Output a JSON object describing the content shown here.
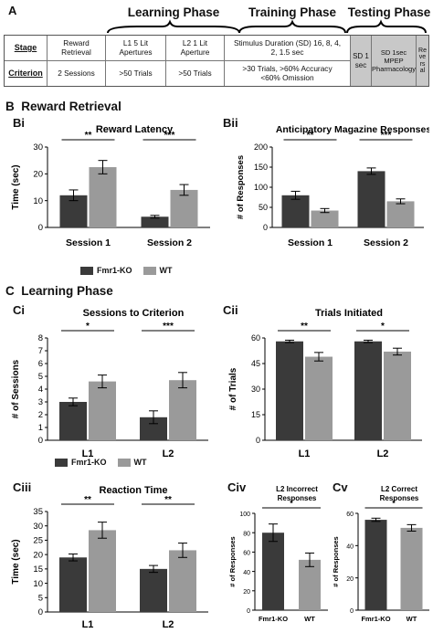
{
  "panel_a": {
    "label": "A",
    "phases": [
      "Learning Phase",
      "Training Phase",
      "Testing Phase"
    ],
    "row_headers": [
      "Stage",
      "Criterion"
    ],
    "stages": [
      "Reward Retrieval",
      "L1 5 Lit Apertures",
      "L2 1 Lit Aperture",
      "Stimulus Duration (SD) 16, 8, 4, 2, 1.5 sec",
      "SD 1 sec",
      "SD 1sec MPEP Pharmacology",
      "Reversal"
    ],
    "criteria": [
      "2 Sessions",
      ">50 Trials",
      ">50 Trials",
      ">30 Trials, >60% Accuracy <60% Omission"
    ]
  },
  "section_b": {
    "letter": "B",
    "title": "Reward Retrieval"
  },
  "section_c": {
    "letter": "C",
    "title": "Learning Phase"
  },
  "legend": {
    "entries": [
      "Fmr1-KO",
      "WT"
    ],
    "colors": [
      "#3a3a3a",
      "#9a9a9a"
    ]
  },
  "chart_data": [
    {
      "panel": "Bi",
      "title": "Reward Latency",
      "type": "bar",
      "ylabel": "Time (sec)",
      "ylim": [
        0,
        30
      ],
      "yticks": [
        0,
        10,
        20,
        30
      ],
      "categories": [
        "Session 1",
        "Session 2"
      ],
      "series": [
        {
          "name": "Fmr1-KO",
          "values": [
            12,
            4
          ],
          "errors": [
            2,
            0.5
          ]
        },
        {
          "name": "WT",
          "values": [
            22.5,
            14
          ],
          "errors": [
            2.5,
            2
          ]
        }
      ],
      "significance": [
        "**",
        "***"
      ]
    },
    {
      "panel": "Bii",
      "title": "Anticipatory Magazine Responses",
      "type": "bar",
      "ylabel": "# of Responses",
      "ylim": [
        0,
        200
      ],
      "yticks": [
        0,
        50,
        100,
        150,
        200
      ],
      "categories": [
        "Session 1",
        "Session 2"
      ],
      "series": [
        {
          "name": "Fmr1-KO",
          "values": [
            80,
            140
          ],
          "errors": [
            10,
            8
          ]
        },
        {
          "name": "WT",
          "values": [
            42,
            65
          ],
          "errors": [
            5,
            6
          ]
        }
      ],
      "significance": [
        "**",
        "***"
      ]
    },
    {
      "panel": "Ci",
      "title": "Sessions to Criterion",
      "type": "bar",
      "ylabel": "# of Sessions",
      "ylim": [
        0,
        8
      ],
      "yticks": [
        0,
        1,
        2,
        3,
        4,
        5,
        6,
        7,
        8
      ],
      "categories": [
        "L1",
        "L2"
      ],
      "series": [
        {
          "name": "Fmr1-KO",
          "values": [
            3,
            1.8
          ],
          "errors": [
            0.3,
            0.5
          ]
        },
        {
          "name": "WT",
          "values": [
            4.6,
            4.7
          ],
          "errors": [
            0.5,
            0.6
          ]
        }
      ],
      "significance": [
        "*",
        "***"
      ]
    },
    {
      "panel": "Cii",
      "title": "Trials Initiated",
      "type": "bar",
      "ylabel": "# of Trials",
      "ylim": [
        0,
        60
      ],
      "yticks": [
        0,
        15,
        30,
        45,
        60
      ],
      "categories": [
        "L1",
        "L2"
      ],
      "series": [
        {
          "name": "Fmr1-KO",
          "values": [
            58,
            58
          ],
          "errors": [
            0.7,
            0.7
          ]
        },
        {
          "name": "WT",
          "values": [
            49,
            52
          ],
          "errors": [
            2.5,
            2
          ]
        }
      ],
      "significance": [
        "**",
        "*"
      ]
    },
    {
      "panel": "Ciii",
      "title": "Reaction Time",
      "type": "bar",
      "ylabel": "Time (sec)",
      "ylim": [
        0,
        35
      ],
      "yticks": [
        0,
        5,
        10,
        15,
        20,
        25,
        30,
        35
      ],
      "categories": [
        "L1",
        "L2"
      ],
      "series": [
        {
          "name": "Fmr1-KO",
          "values": [
            19,
            15
          ],
          "errors": [
            1.2,
            1.2
          ]
        },
        {
          "name": "WT",
          "values": [
            28.5,
            21.5
          ],
          "errors": [
            2.8,
            2.5
          ]
        }
      ],
      "significance": [
        "**",
        "**"
      ]
    },
    {
      "panel": "Civ",
      "title": "L2 Incorrect Responses",
      "type": "bar",
      "ylabel": "# of Responses",
      "ylim": [
        0,
        100
      ],
      "yticks": [
        0,
        20,
        40,
        60,
        80,
        100
      ],
      "categories": [
        "Fmr1-KO",
        "WT"
      ],
      "series": [
        {
          "name": "",
          "values": [
            80,
            52
          ],
          "errors": [
            9,
            7
          ]
        }
      ],
      "significance": [
        "*"
      ]
    },
    {
      "panel": "Cv",
      "title": "L2 Correct Responses",
      "type": "bar",
      "ylabel": "# of Responses",
      "ylim": [
        0,
        60
      ],
      "yticks": [
        0,
        20,
        40,
        60
      ],
      "categories": [
        "Fmr1-KO",
        "WT"
      ],
      "series": [
        {
          "name": "",
          "values": [
            56,
            51
          ],
          "errors": [
            1,
            2
          ]
        }
      ],
      "significance": [
        "*"
      ]
    }
  ]
}
